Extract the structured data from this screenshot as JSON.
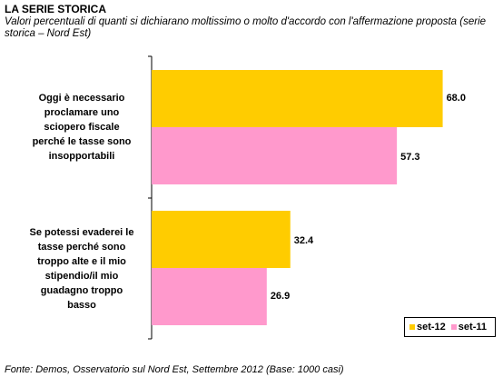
{
  "title": "LA SERIE STORICA",
  "subtitle": "Valori percentuali di quanti si dichiarano moltissimo o molto d'accordo con l'affermazione proposta (serie storica – Nord Est)",
  "source": "Fonte: Demos, Osservatorio sul Nord Est, Settembre 2012 (Base: 1000 casi)",
  "colors": {
    "set-12": "#ffcc00",
    "set-11": "#ff99cc"
  },
  "chart_data": {
    "type": "bar",
    "orientation": "horizontal",
    "categories": [
      "Oggi è necessario proclamare uno sciopero fiscale perché le tasse sono insopportabili",
      "Se potessi evaderei le tasse perché sono troppo alte e il mio stipendio/il mio guadagno troppo basso"
    ],
    "category_lines": [
      [
        "Oggi è necessario",
        "proclamare uno",
        "sciopero fiscale",
        "perché le tasse sono",
        "insopportabili"
      ],
      [
        "Se potessi evaderei le",
        "tasse perché sono",
        "troppo alte e il mio",
        "stipendio/il mio",
        "guadagno troppo",
        "basso"
      ]
    ],
    "series": [
      {
        "name": "set-12",
        "values": [
          68.0,
          32.4
        ],
        "labels": [
          "68.0",
          "32.4"
        ]
      },
      {
        "name": "set-11",
        "values": [
          57.3,
          26.9
        ],
        "labels": [
          "57.3",
          "26.9"
        ]
      }
    ],
    "xlim": [
      0,
      70
    ],
    "grid": false,
    "legend_position": "bottom-right"
  }
}
